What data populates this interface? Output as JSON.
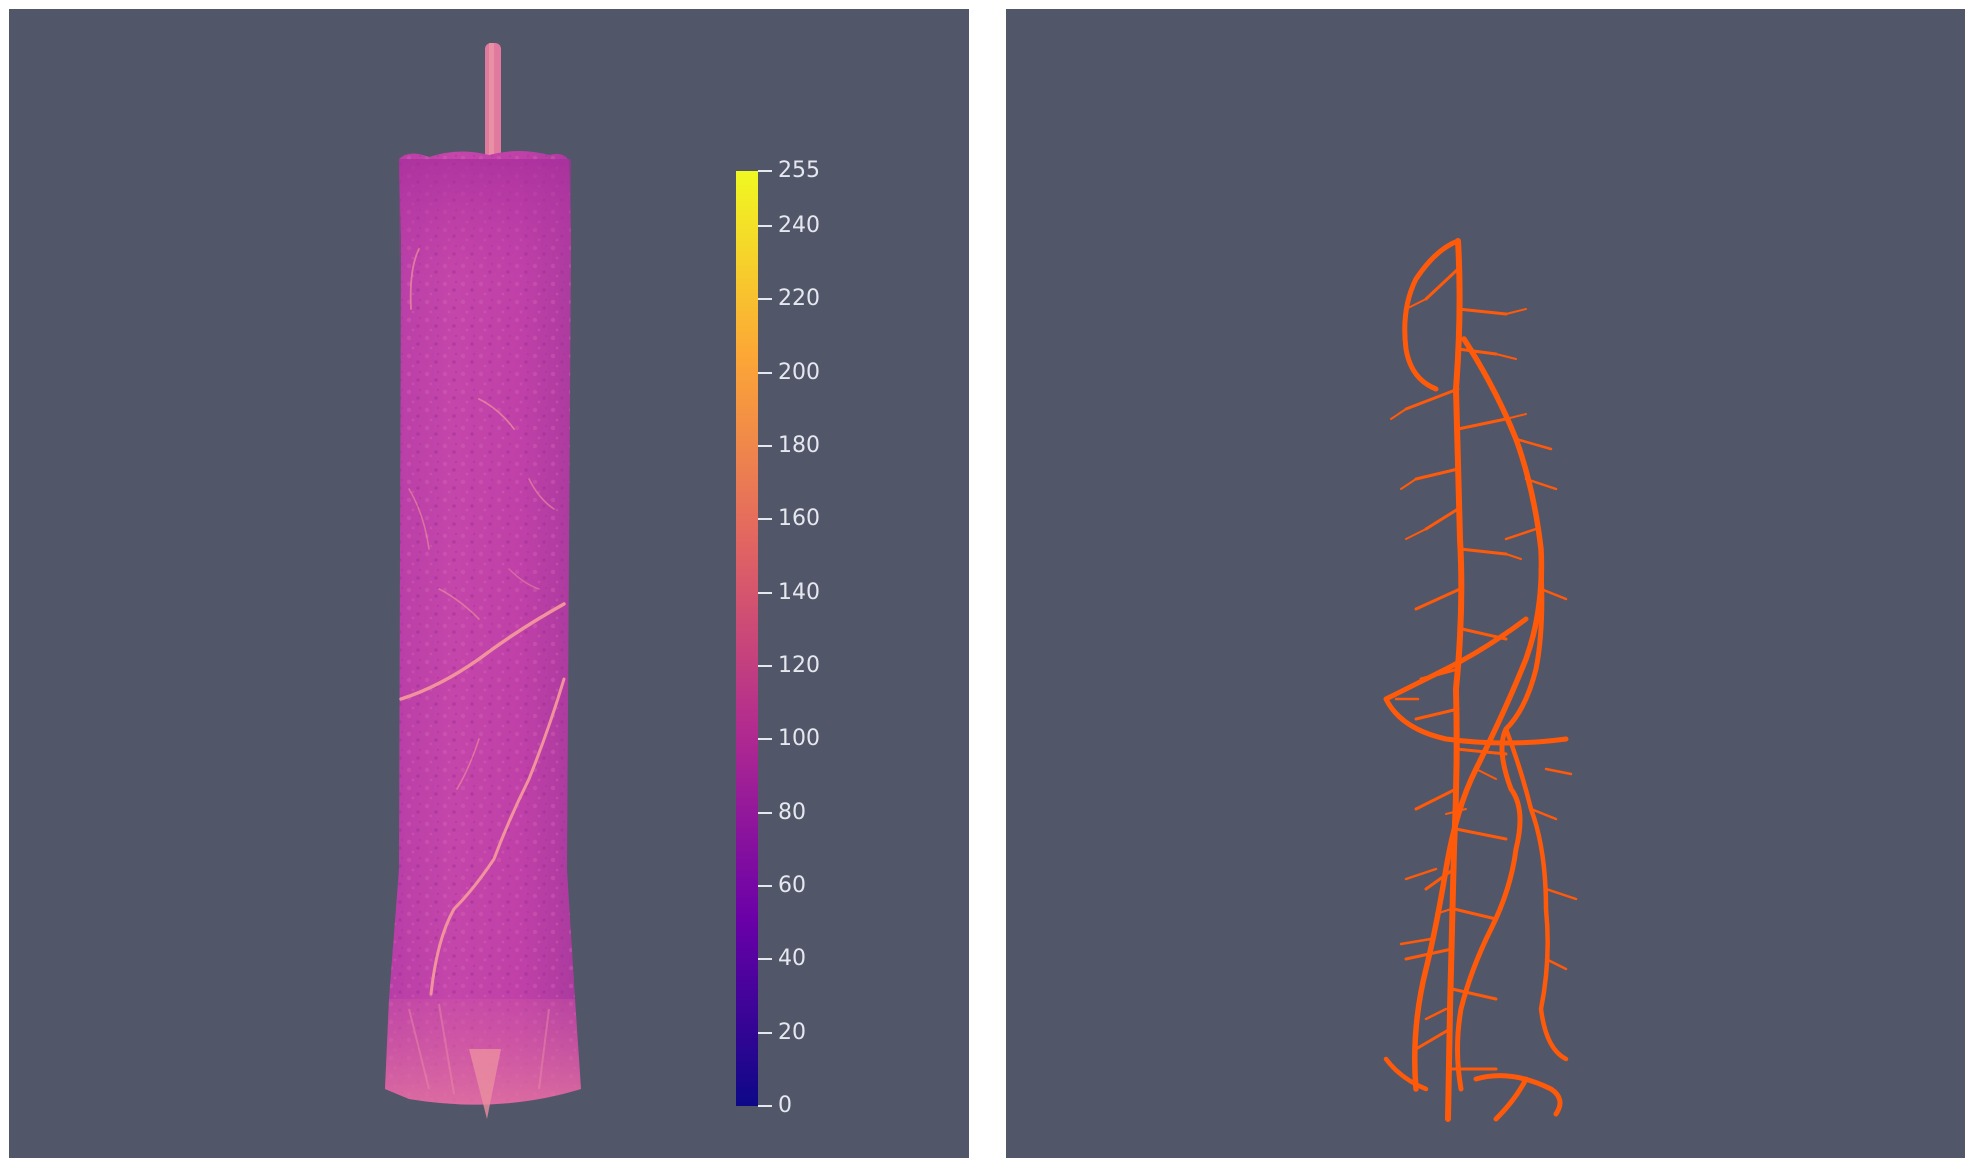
{
  "viewports": {
    "left": {
      "background": "#525669",
      "render": "volume-rendering-soil-column",
      "colorbar": {
        "colormap": "plasma",
        "min": 0,
        "max": 255,
        "stops": [
          "#0d0887",
          "#6a00a8",
          "#b12a90",
          "#e16462",
          "#fca636",
          "#f0f921"
        ],
        "ticks": [
          {
            "value": 0,
            "label": "0"
          },
          {
            "value": 20,
            "label": "20"
          },
          {
            "value": 40,
            "label": "40"
          },
          {
            "value": 60,
            "label": "60"
          },
          {
            "value": 80,
            "label": "80"
          },
          {
            "value": 100,
            "label": "100"
          },
          {
            "value": 120,
            "label": "120"
          },
          {
            "value": 140,
            "label": "140"
          },
          {
            "value": 160,
            "label": "160"
          },
          {
            "value": 180,
            "label": "180"
          },
          {
            "value": 200,
            "label": "200"
          },
          {
            "value": 220,
            "label": "220"
          },
          {
            "value": 240,
            "label": "240"
          },
          {
            "value": 255,
            "label": "255"
          }
        ]
      }
    },
    "right": {
      "background": "#525669",
      "render": "segmented-root-system",
      "root_color": "#ff5a0a"
    }
  }
}
